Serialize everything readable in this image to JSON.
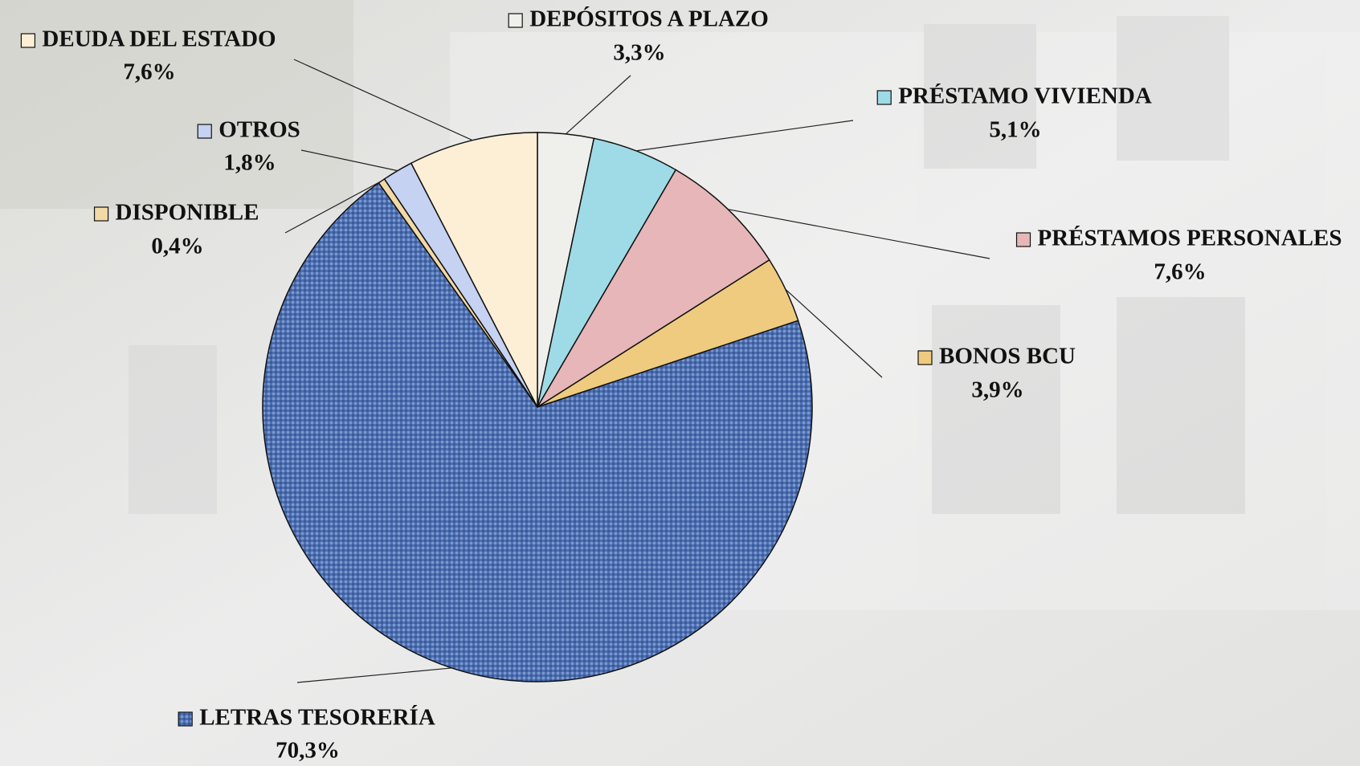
{
  "chart_data": {
    "type": "pie",
    "categories": [
      "DEPÓSITOS A PLAZO",
      "PRÉSTAMO VIVIENDA",
      "PRÉSTAMOS PERSONALES",
      "BONOS BCU",
      "LETRAS TESORERÍA",
      "DISPONIBLE",
      "OTROS",
      "DEUDA DEL ESTADO"
    ],
    "values": [
      3.3,
      5.1,
      7.6,
      3.9,
      70.3,
      0.4,
      1.8,
      7.6
    ],
    "value_labels": [
      "3,3%",
      "5,1%",
      "7,6%",
      "3,9%",
      "70,3%",
      "0,4%",
      "1,8%",
      "7,6%"
    ],
    "colors": [
      "#efefeb",
      "#9edbe6",
      "#e6b6b8",
      "#efcb80",
      "#4d70b3",
      "#f3d9a6",
      "#c6d2f2",
      "#fcefd6"
    ]
  }
}
